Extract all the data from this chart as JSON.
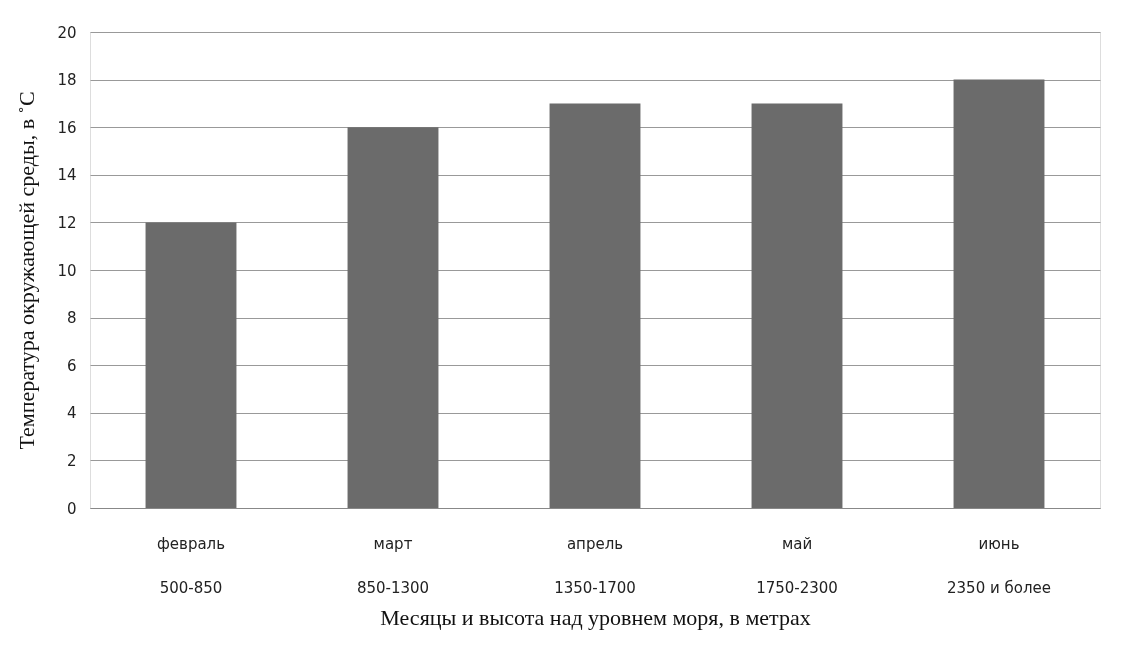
{
  "chart_data": {
    "type": "bar",
    "xlabel": "Месяцы и высота над уровнем моря, в метрах",
    "ylabel": "Температура окружающей среды, в ˚С",
    "categories": [
      "февраль\n500-850",
      "март\n850-1300",
      "апрель\n1350-1700",
      "май\n1750-2300",
      "июнь\n2350 и более"
    ],
    "values": [
      12,
      16,
      17,
      17,
      18
    ],
    "color": "#6b6b6b",
    "ylim": [
      0,
      20
    ],
    "yticks": [
      0,
      2,
      4,
      6,
      8,
      10,
      12,
      14,
      16,
      18,
      20
    ],
    "grid": "y"
  }
}
